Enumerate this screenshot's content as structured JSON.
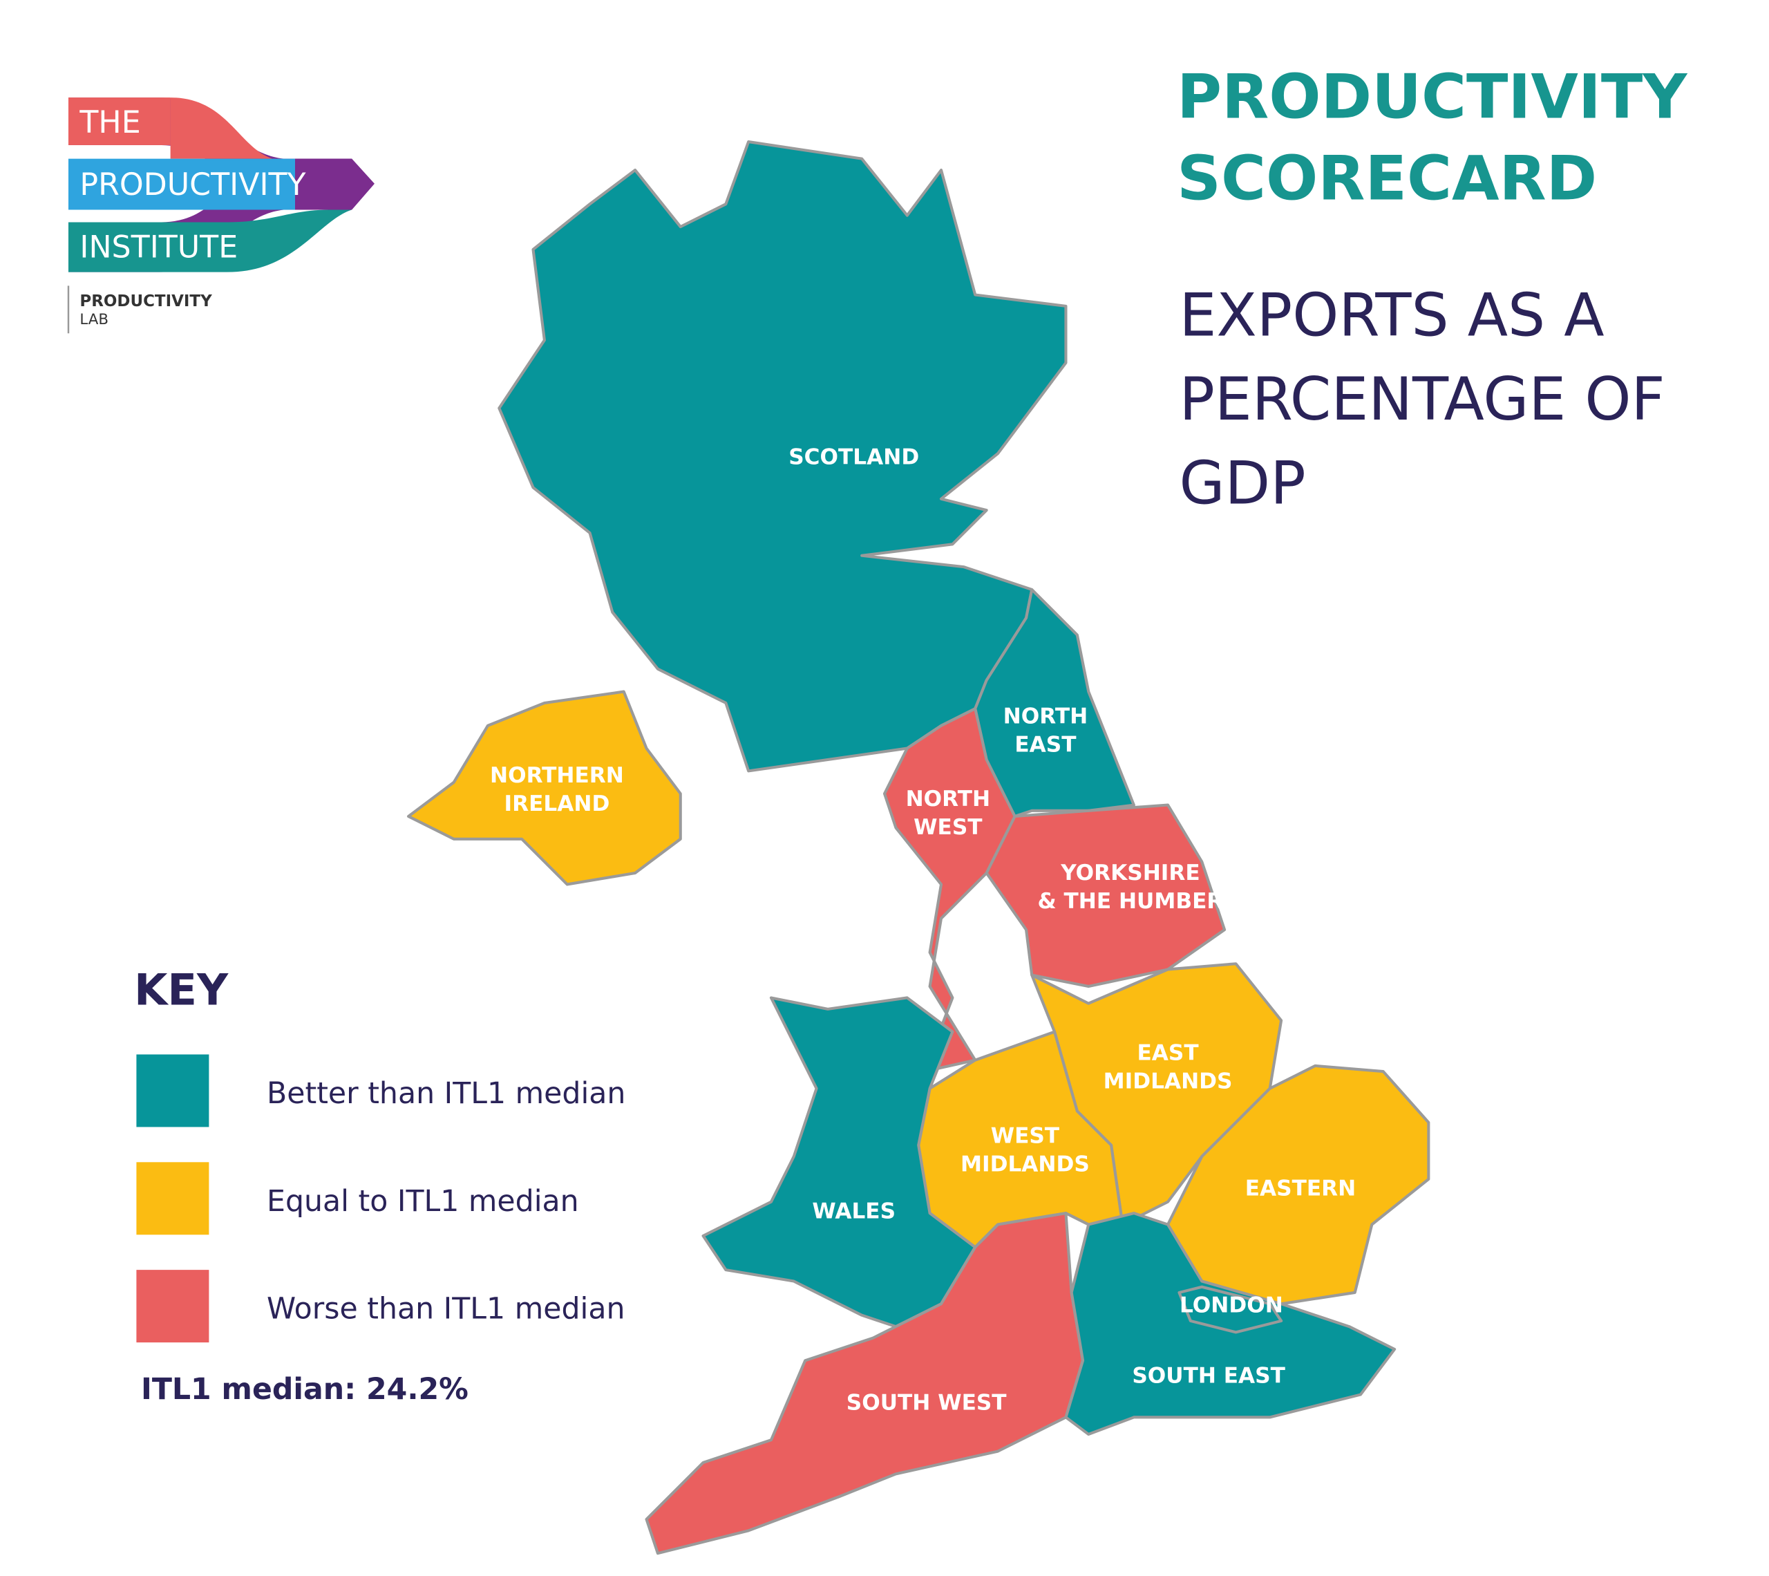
{
  "logo": {
    "lines": [
      "THE",
      "PRODUCTIVITY",
      "INSTITUTE"
    ],
    "lab": [
      "PRODUCTIVITY",
      "LAB"
    ]
  },
  "header": {
    "title": [
      "PRODUCTIVITY",
      "SCORECARD"
    ],
    "subtitle": [
      "EXPORTS AS A",
      "PERCENTAGE OF",
      "GDP"
    ]
  },
  "key": {
    "title": "KEY",
    "items": [
      {
        "label": "Better than ITL1 median",
        "color": "#07959a"
      },
      {
        "label": "Equal to ITL1 median",
        "color": "#fbbc12"
      },
      {
        "label": "Worse than ITL1 median",
        "color": "#ea5f5f"
      }
    ],
    "note": "ITL1 median: 24.2%"
  },
  "regions": [
    {
      "label": [
        "SCOTLAND"
      ],
      "color": "#07959a"
    },
    {
      "label": [
        "NORTH",
        "EAST"
      ],
      "color": "#07959a"
    },
    {
      "label": [
        "NORTH",
        "WEST"
      ],
      "color": "#ea5f5f"
    },
    {
      "label": [
        "YORKSHIRE",
        "& THE HUMBER"
      ],
      "color": "#ea5f5f"
    },
    {
      "label": [
        "EAST",
        "MIDLANDS"
      ],
      "color": "#fbbc12"
    },
    {
      "label": [
        "EASTERN"
      ],
      "color": "#fbbc12"
    },
    {
      "label": [
        "WEST",
        "MIDLANDS"
      ],
      "color": "#fbbc12"
    },
    {
      "label": [
        "WALES"
      ],
      "color": "#07959a"
    },
    {
      "label": [
        "SOUTH WEST"
      ],
      "color": "#ea5f5f"
    },
    {
      "label": [
        "SOUTH EAST"
      ],
      "color": "#07959a"
    },
    {
      "label": [
        "LONDON"
      ],
      "color": "#07959a"
    },
    {
      "label": [
        "NORTHERN",
        "IRELAND"
      ],
      "color": "#fbbc12"
    }
  ]
}
